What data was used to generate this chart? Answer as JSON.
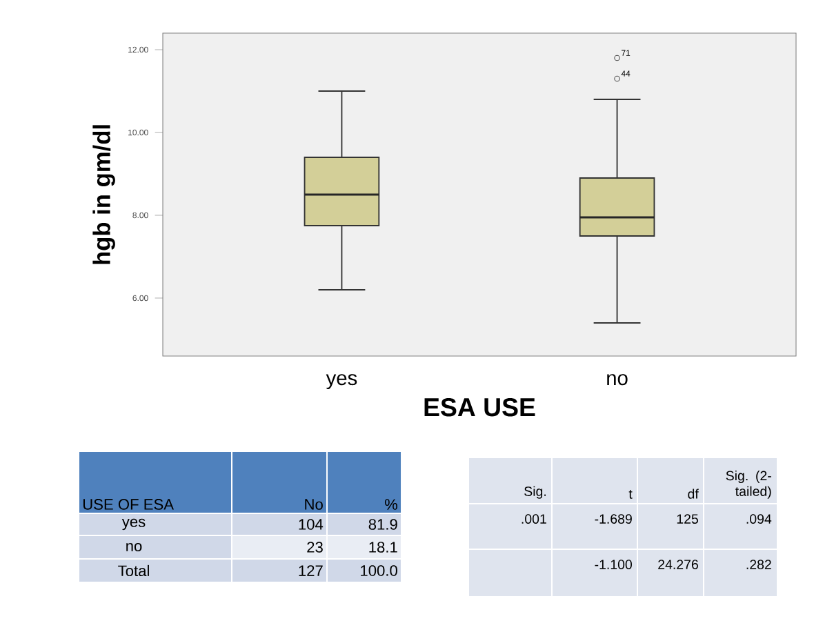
{
  "chart_data": {
    "type": "box",
    "ylabel": "hgb in gm/dl",
    "xlabel": "ESA USE",
    "categories": [
      "yes",
      "no"
    ],
    "boxes": [
      {
        "low": 6.2,
        "q1": 7.75,
        "median": 8.5,
        "q3": 9.4,
        "high": 11.0
      },
      {
        "low": 5.4,
        "q1": 7.5,
        "median": 7.95,
        "q3": 8.9,
        "high": 10.8,
        "outliers": [
          11.8,
          11.3
        ]
      }
    ],
    "color": "#d3cf98",
    "ylim": [
      4.6,
      12.4
    ],
    "yticks": [
      {
        "value": 6,
        "label": "6.00"
      },
      {
        "value": 8,
        "label": "8.00"
      },
      {
        "value": 10,
        "label": "10.00"
      },
      {
        "value": 12,
        "label": "12.00"
      }
    ],
    "annotations": [
      "USE  OF ESA",
      "No",
      "%",
      "yes",
      "104",
      "81.9",
      "no",
      "23",
      "18.1",
      "Total",
      "127",
      "100.0",
      "Sig.",
      "t",
      "df",
      "Sig. (2-tailed)",
      ".001",
      "-1.689",
      "125",
      ".094",
      "-1.100",
      "24.276",
      ".282",
      "71",
      "44"
    ]
  }
}
